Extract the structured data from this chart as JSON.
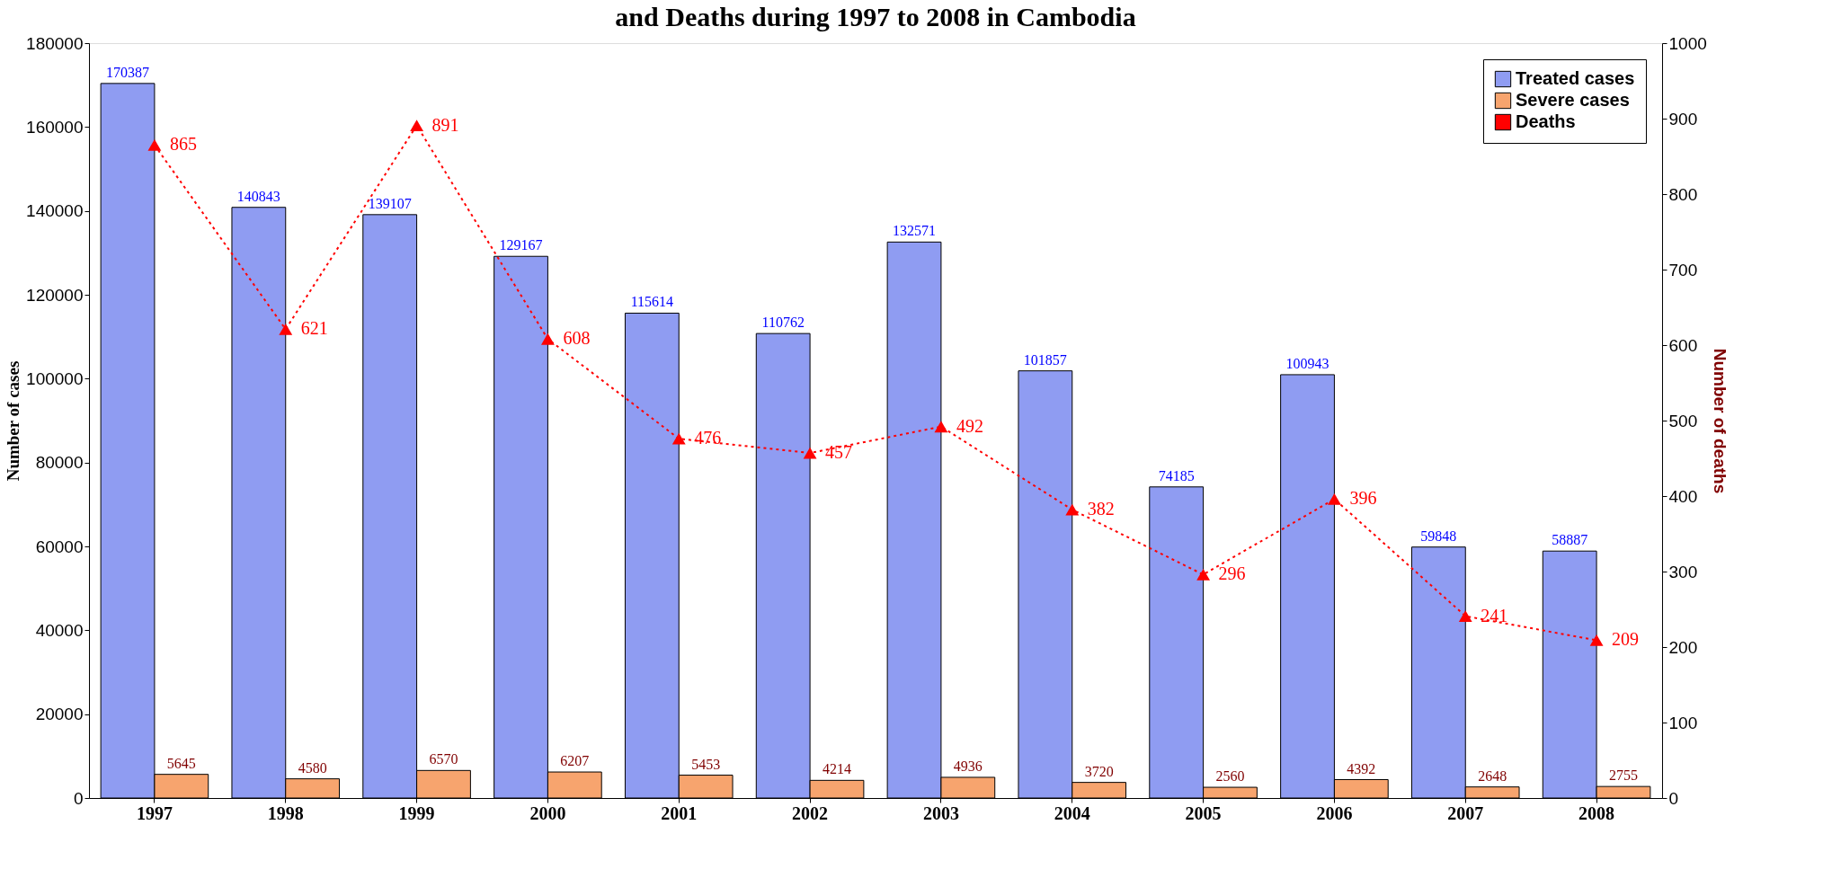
{
  "chart_data": {
    "type": "bar",
    "title": "and Deaths during 1997 to 2008 in Cambodia",
    "ylabel": "Number of cases",
    "y2label": "Number of deaths",
    "categories": [
      "1997",
      "1998",
      "1999",
      "2000",
      "2001",
      "2002",
      "2003",
      "2004",
      "2005",
      "2006",
      "2007",
      "2008"
    ],
    "series": [
      {
        "name": "Treated cases",
        "color": "#8f9cf2",
        "values": [
          170387,
          140843,
          139107,
          129167,
          115614,
          110762,
          132571,
          101857,
          74185,
          100943,
          59848,
          58887
        ]
      },
      {
        "name": "Severe cases",
        "color": "#f7a46e",
        "values": [
          5645,
          4580,
          6570,
          6207,
          5453,
          4214,
          4936,
          3720,
          2560,
          4392,
          2648,
          2755
        ]
      },
      {
        "name": "Deaths",
        "type": "line",
        "axis": "y2",
        "color": "#ff0000",
        "marker": "triangle",
        "line_style": "dotted",
        "values": [
          865,
          621,
          891,
          608,
          476,
          457,
          492,
          382,
          296,
          396,
          241,
          209
        ]
      }
    ],
    "ylim": [
      0,
      180000
    ],
    "yticks": [
      0,
      20000,
      40000,
      60000,
      80000,
      100000,
      120000,
      140000,
      160000,
      180000
    ],
    "y2lim": [
      0,
      1000
    ],
    "y2ticks": [
      0,
      100,
      200,
      300,
      400,
      500,
      600,
      700,
      800,
      900,
      1000
    ],
    "data_labels": true,
    "legend": "top right",
    "grid": false
  }
}
